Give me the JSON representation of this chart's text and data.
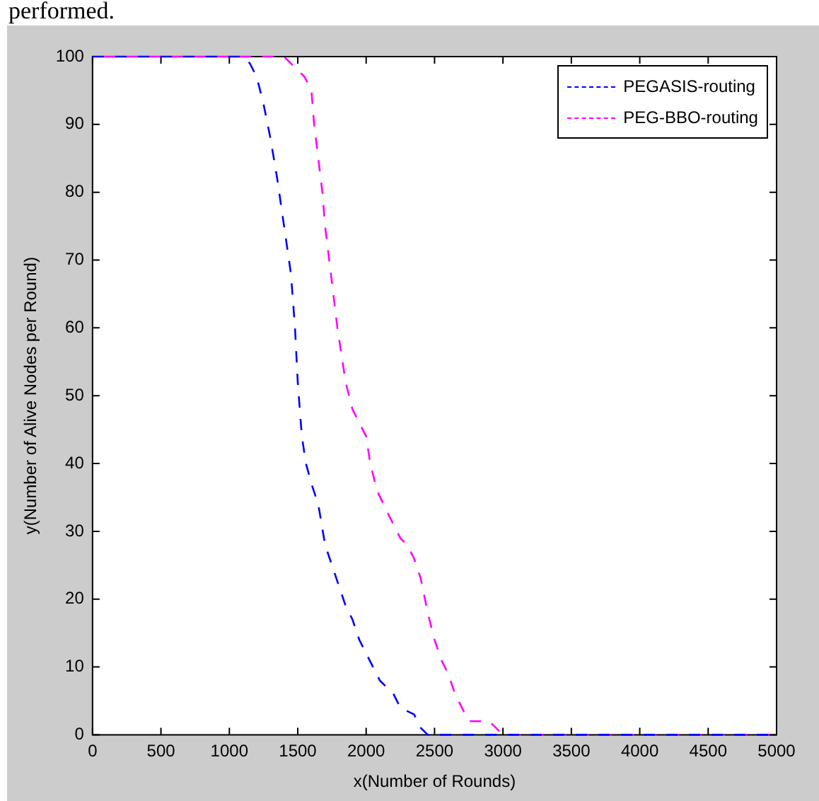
{
  "chart_data": {
    "type": "line",
    "annotations": [
      "performed."
    ],
    "xlabel": "x(Number of Rounds)",
    "ylabel": "y(Number of Alive Nodes per Round)",
    "xlim": [
      0,
      5000
    ],
    "xticks": [
      0,
      500,
      1000,
      1500,
      2000,
      2500,
      3000,
      3500,
      4000,
      4500,
      5000
    ],
    "ylim": [
      0,
      100
    ],
    "yticks": [
      0,
      10,
      20,
      30,
      40,
      50,
      60,
      70,
      80,
      90,
      100
    ],
    "grid": false,
    "legend": "top right",
    "marker": "none",
    "series": [
      {
        "name": "PEGASIS-routing",
        "color": "#0000ff",
        "line_style": "dashed",
        "x": [
          0,
          1100,
          1150,
          1200,
          1250,
          1300,
          1350,
          1400,
          1450,
          1480,
          1500,
          1530,
          1560,
          1600,
          1650,
          1700,
          1750,
          1800,
          1850,
          1900,
          1950,
          2000,
          2050,
          2100,
          2200,
          2250,
          2350,
          2400,
          2450,
          5000
        ],
        "values": [
          100,
          100,
          99,
          97,
          93,
          88,
          82,
          75,
          68,
          60,
          52,
          44,
          40,
          37,
          34,
          28,
          25,
          22,
          19,
          17,
          14,
          12,
          10,
          8,
          6,
          4,
          3,
          1,
          0,
          0
        ]
      },
      {
        "name": "PEG-BBO-routing",
        "color": "#ff00ff",
        "line_style": "dashed",
        "x": [
          0,
          1400,
          1450,
          1550,
          1600,
          1620,
          1650,
          1680,
          1700,
          1730,
          1760,
          1790,
          1820,
          1850,
          1900,
          1950,
          2000,
          2030,
          2080,
          2150,
          2200,
          2250,
          2300,
          2350,
          2400,
          2450,
          2500,
          2550,
          2600,
          2650,
          2700,
          2750,
          2900,
          3000,
          5000
        ],
        "values": [
          100,
          100,
          99,
          97,
          95,
          90,
          85,
          80,
          75,
          70,
          65,
          60,
          56,
          52,
          48,
          46,
          44,
          40,
          36,
          33,
          31,
          29,
          28,
          26,
          23,
          18,
          14,
          11,
          9,
          6,
          4,
          2,
          2,
          0,
          0
        ]
      }
    ]
  }
}
